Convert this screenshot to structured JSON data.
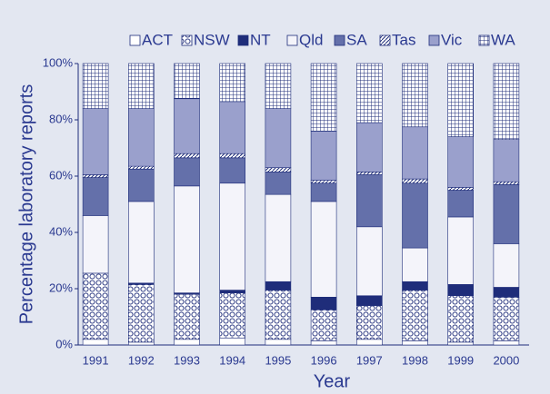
{
  "chart_data": {
    "type": "stacked_bar",
    "x_label": "Year",
    "y_label": "Percentage laboratory reports",
    "categories": [
      "1991",
      "1992",
      "1993",
      "1994",
      "1995",
      "1996",
      "1997",
      "1998",
      "1999",
      "2000"
    ],
    "ylim": [
      0,
      100
    ],
    "yticks": [
      {
        "value": 0,
        "label": "0%"
      },
      {
        "value": 20,
        "label": "20%"
      },
      {
        "value": 40,
        "label": "40%"
      },
      {
        "value": 60,
        "label": "60%"
      },
      {
        "value": 80,
        "label": "80%"
      },
      {
        "value": 100,
        "label": "100%"
      }
    ],
    "legend": "top",
    "series": [
      {
        "name": "ACT",
        "color": "#ffffff",
        "pattern": "solid",
        "values": [
          2,
          1,
          2,
          2.5,
          2,
          1.5,
          2,
          1.5,
          1,
          1.5
        ]
      },
      {
        "name": "NSW",
        "color": "#1f2d7a",
        "pattern": "circles",
        "values": [
          23.5,
          20.5,
          16,
          16,
          17.5,
          11,
          12,
          18,
          16.5,
          15.5
        ]
      },
      {
        "name": "NT",
        "color": "#1f2d7a",
        "pattern": "solid",
        "values": [
          0,
          0.5,
          0.5,
          1,
          3,
          4.5,
          3.5,
          3,
          4,
          3.5
        ]
      },
      {
        "name": "Qld",
        "color": "#f4f4fa",
        "pattern": "solid",
        "values": [
          20.5,
          29,
          38,
          38,
          31,
          34,
          24.5,
          12,
          24,
          15.5
        ]
      },
      {
        "name": "SA",
        "color": "#6470aa",
        "pattern": "solid",
        "values": [
          13.5,
          11.5,
          10,
          9,
          8,
          6.5,
          18.5,
          23,
          9.5,
          21
        ]
      },
      {
        "name": "Tas",
        "color": "#1f2d7a",
        "pattern": "stripes",
        "values": [
          1,
          1,
          1.5,
          1.5,
          1.5,
          1,
          1,
          1.5,
          1,
          1
        ]
      },
      {
        "name": "Vic",
        "color": "#9aa0cc",
        "pattern": "solid",
        "values": [
          23.5,
          20.5,
          19.5,
          18.5,
          21,
          17.5,
          17.5,
          18.5,
          18,
          15
        ]
      },
      {
        "name": "WA",
        "color": "#1f2d7a",
        "pattern": "grid",
        "values": [
          16,
          16,
          12.5,
          13.5,
          16,
          24,
          21,
          22.5,
          26,
          27
        ]
      }
    ]
  }
}
